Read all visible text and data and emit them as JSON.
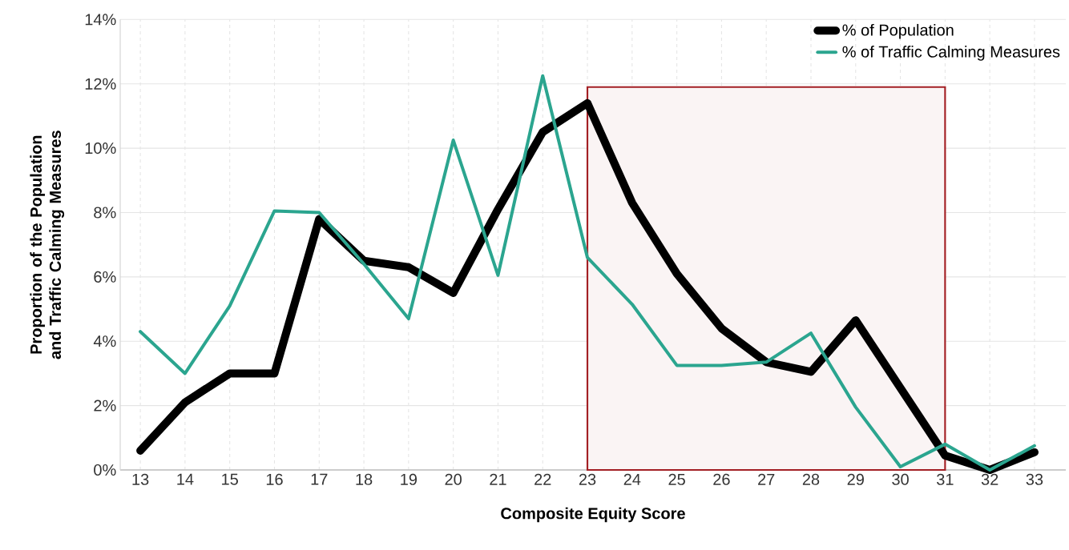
{
  "chart_data": {
    "type": "line",
    "xlabel": "Composite Equity Score",
    "ylabel": "Proportion of the Population and Traffic Calming Measures",
    "x": [
      13,
      14,
      15,
      16,
      17,
      18,
      19,
      20,
      21,
      22,
      23,
      24,
      25,
      26,
      27,
      28,
      29,
      30,
      31,
      32,
      33
    ],
    "series": [
      {
        "name": "% of Population",
        "color": "#000000",
        "values": [
          0.6,
          2.1,
          3.0,
          3.0,
          7.8,
          6.5,
          6.3,
          5.5,
          8.1,
          10.5,
          11.4,
          8.3,
          6.1,
          4.4,
          3.35,
          3.05,
          4.65,
          2.55,
          0.45,
          0.0,
          0.55
        ]
      },
      {
        "name": "% of Traffic Calming Measures",
        "color": "#2ba58f",
        "values": [
          4.3,
          3.0,
          5.1,
          8.05,
          8.0,
          6.4,
          4.7,
          10.25,
          6.05,
          12.25,
          6.6,
          5.15,
          3.25,
          3.25,
          3.35,
          4.25,
          1.95,
          0.1,
          0.8,
          0.0,
          0.75
        ]
      }
    ],
    "xlim": [
      12.55,
      33.7
    ],
    "ylim": [
      0,
      14
    ],
    "xticks": [
      13,
      14,
      15,
      16,
      17,
      18,
      19,
      20,
      21,
      22,
      23,
      24,
      25,
      26,
      27,
      28,
      29,
      30,
      31,
      32,
      33
    ],
    "yticks": [
      {
        "value": 0,
        "label": "0%"
      },
      {
        "value": 2,
        "label": "2%"
      },
      {
        "value": 4,
        "label": "4%"
      },
      {
        "value": 6,
        "label": "6%"
      },
      {
        "value": 8,
        "label": "8%"
      },
      {
        "value": 10,
        "label": "10%"
      },
      {
        "value": 12,
        "label": "12%"
      },
      {
        "value": 14,
        "label": "14%"
      }
    ],
    "bands": [
      {
        "axis": "x",
        "from": 23,
        "to": 31,
        "color": "#a31f24"
      }
    ],
    "grid": true,
    "legend": "top right",
    "marker": "none",
    "line_style": "solid"
  }
}
